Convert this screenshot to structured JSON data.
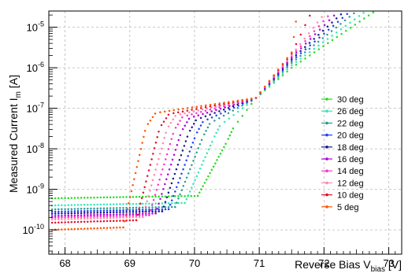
{
  "chart_data": {
    "type": "scatter",
    "title": "",
    "ylabel": {
      "main": "Measured Current I",
      "sub": "m",
      "unit": " [A]"
    },
    "xlabel": {
      "main": "Reverse Bias V",
      "sub": "bias",
      "unit": " [V]"
    },
    "xlim": [
      67.75,
      73.2
    ],
    "ylim_log10": [
      -10.6,
      -4.6
    ],
    "log_y": true,
    "grid": true,
    "legend_position": "right",
    "x_ticks": [
      68,
      69,
      70,
      71,
      72,
      73
    ],
    "x_tick_labels": [
      "68",
      "69",
      "70",
      "71",
      "72",
      "73"
    ],
    "y_ticks": [
      {
        "value": 1e-10,
        "base": "10",
        "exp": "-10"
      },
      {
        "value": 1e-09,
        "base": "10",
        "exp": "-9"
      },
      {
        "value": 1e-08,
        "base": "10",
        "exp": "-8"
      },
      {
        "value": 1e-07,
        "base": "10",
        "exp": "-7"
      },
      {
        "value": 1e-06,
        "base": "10",
        "exp": "-6"
      },
      {
        "value": 1e-05,
        "base": "10",
        "exp": "-5"
      }
    ],
    "series": [
      {
        "name": "30 deg",
        "color": "#22dd22",
        "flat_level": 6e-10,
        "breakdown_v": 70.05,
        "end_v": 72.9
      },
      {
        "name": "26 deg",
        "color": "#33e6b8",
        "flat_level": 4e-10,
        "breakdown_v": 69.85,
        "end_v": 72.75
      },
      {
        "name": "22 deg",
        "color": "#2a9d8f",
        "flat_level": 3.2e-10,
        "breakdown_v": 69.7,
        "end_v": 72.6
      },
      {
        "name": "20 deg",
        "color": "#1f3fff",
        "flat_level": 2.8e-10,
        "breakdown_v": 69.6,
        "end_v": 72.5
      },
      {
        "name": "18 deg",
        "color": "#1a1a8c",
        "flat_level": 2.5e-10,
        "breakdown_v": 69.5,
        "end_v": 72.4
      },
      {
        "name": "16 deg",
        "color": "#b000e0",
        "flat_level": 2.2e-10,
        "breakdown_v": 69.4,
        "end_v": 72.3
      },
      {
        "name": "14 deg",
        "color": "#ff33cc",
        "flat_level": 2e-10,
        "breakdown_v": 69.3,
        "end_v": 72.2
      },
      {
        "name": "12 deg",
        "color": "#ff88aa",
        "flat_level": 1.8e-10,
        "breakdown_v": 69.2,
        "end_v": 72.1
      },
      {
        "name": "10 deg",
        "color": "#e0102a",
        "flat_level": 1.5e-10,
        "breakdown_v": 69.1,
        "end_v": 71.85
      },
      {
        "name": "5 deg",
        "color": "#ff5500",
        "flat_level": 1e-10,
        "breakdown_v": 68.9,
        "end_v": 71.6
      }
    ]
  }
}
